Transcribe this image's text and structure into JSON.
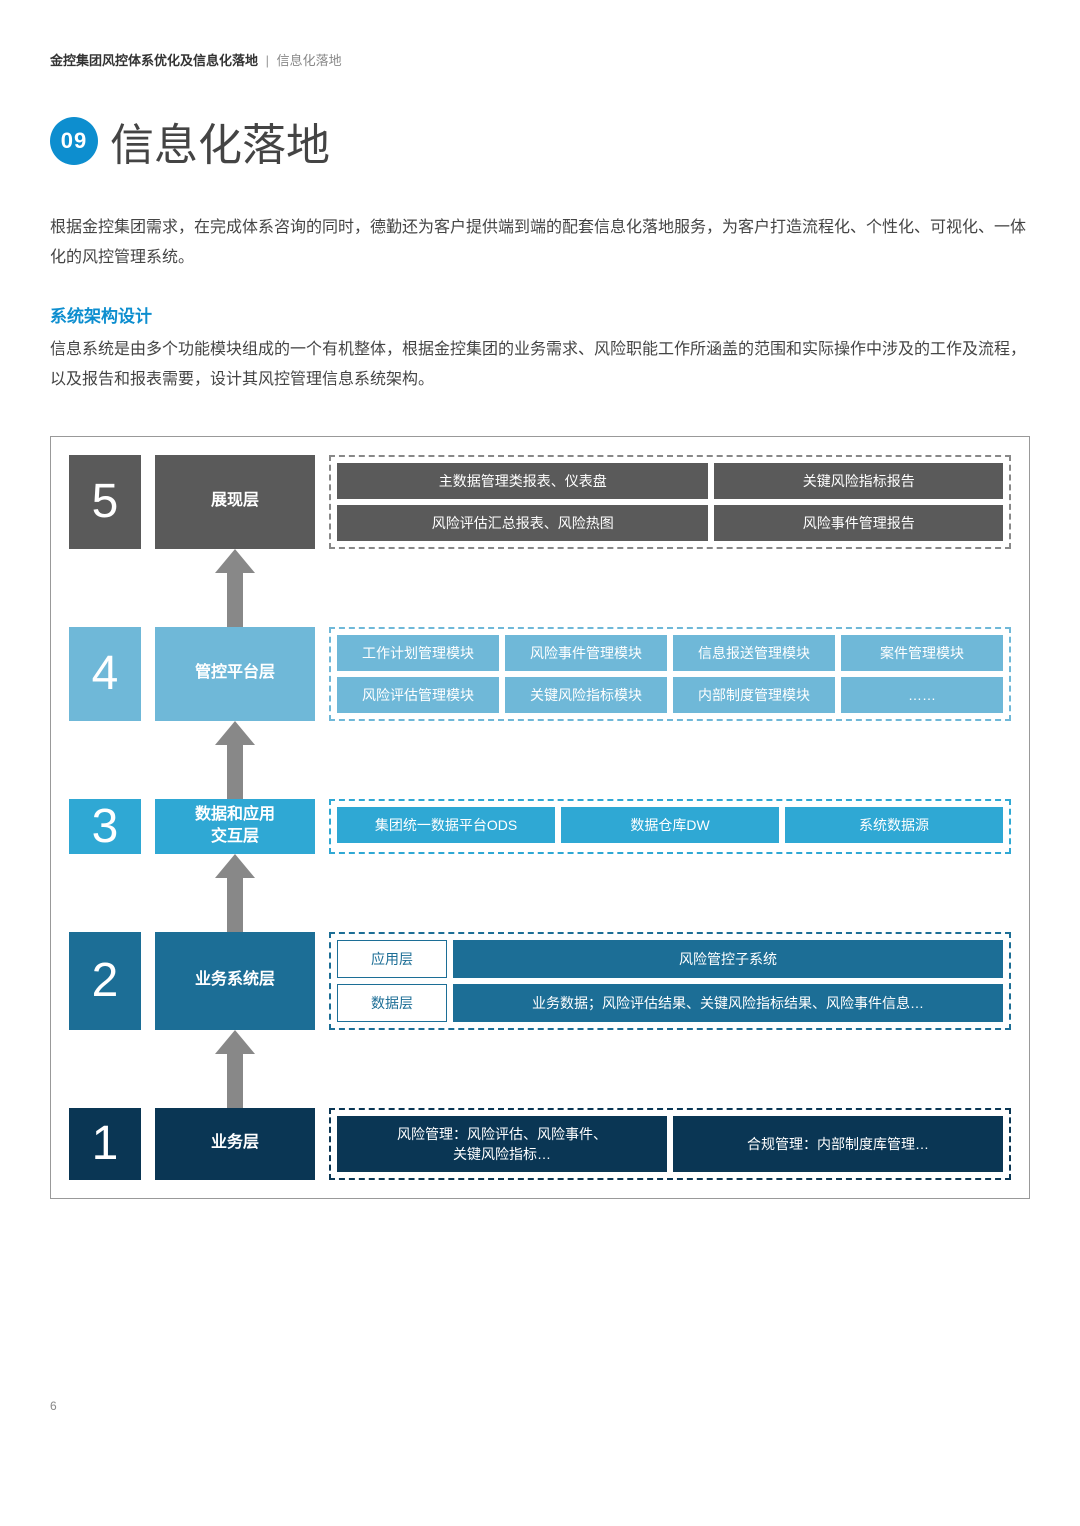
{
  "breadcrumb": {
    "main": "金控集团风控体系优化及信息化落地",
    "sep": "|",
    "current": "信息化落地"
  },
  "badge": "09",
  "title": "信息化落地",
  "intro": "根据金控集团需求，在完成体系咨询的同时，德勤还为客户提供端到端的配套信息化落地服务，为客户打造流程化、个性化、可视化、一体化的风控管理系统。",
  "sub_heading": "系统架构设计",
  "sub_text": "信息系统是由多个功能模块组成的一个有机整体，根据金控集团的业务需求、风险职能工作所涵盖的范围和实际操作中涉及的工作及流程，以及报告和报表需要，设计其风控管理信息系统架构。",
  "colors": {
    "l5_bg": "#5a5a5a",
    "l5_dash": "#888888",
    "l4_bg": "#6fb8d8",
    "l4_dash": "#6fb8d8",
    "l3_bg": "#2fa8d4",
    "l3_dash": "#2fa8d4",
    "l2_bg": "#1c6e96",
    "l2_dash": "#1c6e96",
    "l2_txt": "#1c6e96",
    "l1_bg": "#0a3654",
    "l1_dash": "#0a3654",
    "arrow": "#888888"
  },
  "layers": {
    "l5": {
      "num": "5",
      "label": "展现层",
      "r1": [
        "主数据管理类报表、仪表盘",
        "关键风险指标报告"
      ],
      "r2": [
        "风险评估汇总报表、风险热图",
        "风险事件管理报告"
      ]
    },
    "l4": {
      "num": "4",
      "label": "管控平台层",
      "r1": [
        "工作计划管理模块",
        "风险事件管理模块",
        "信息报送管理模块",
        "案件管理模块"
      ],
      "r2": [
        "风险评估管理模块",
        "关键风险指标模块",
        "内部制度管理模块",
        "……"
      ]
    },
    "l3": {
      "num": "3",
      "label": "数据和应用\n交互层",
      "r1": [
        "集团统一数据平台ODS",
        "数据仓库DW",
        "系统数据源"
      ]
    },
    "l2": {
      "num": "2",
      "label": "业务系统层",
      "left": [
        "应用层",
        "数据层"
      ],
      "right": [
        "风险管控子系统",
        "业务数据；风险评估结果、关键风险指标结果、风险事件信息…"
      ]
    },
    "l1": {
      "num": "1",
      "label": "业务层",
      "r1": [
        "风险管理：风险评估、风险事件、\n关键风险指标…",
        "合规管理：内部制度库管理…"
      ]
    }
  },
  "arrow_h": 78,
  "page_num": "6"
}
